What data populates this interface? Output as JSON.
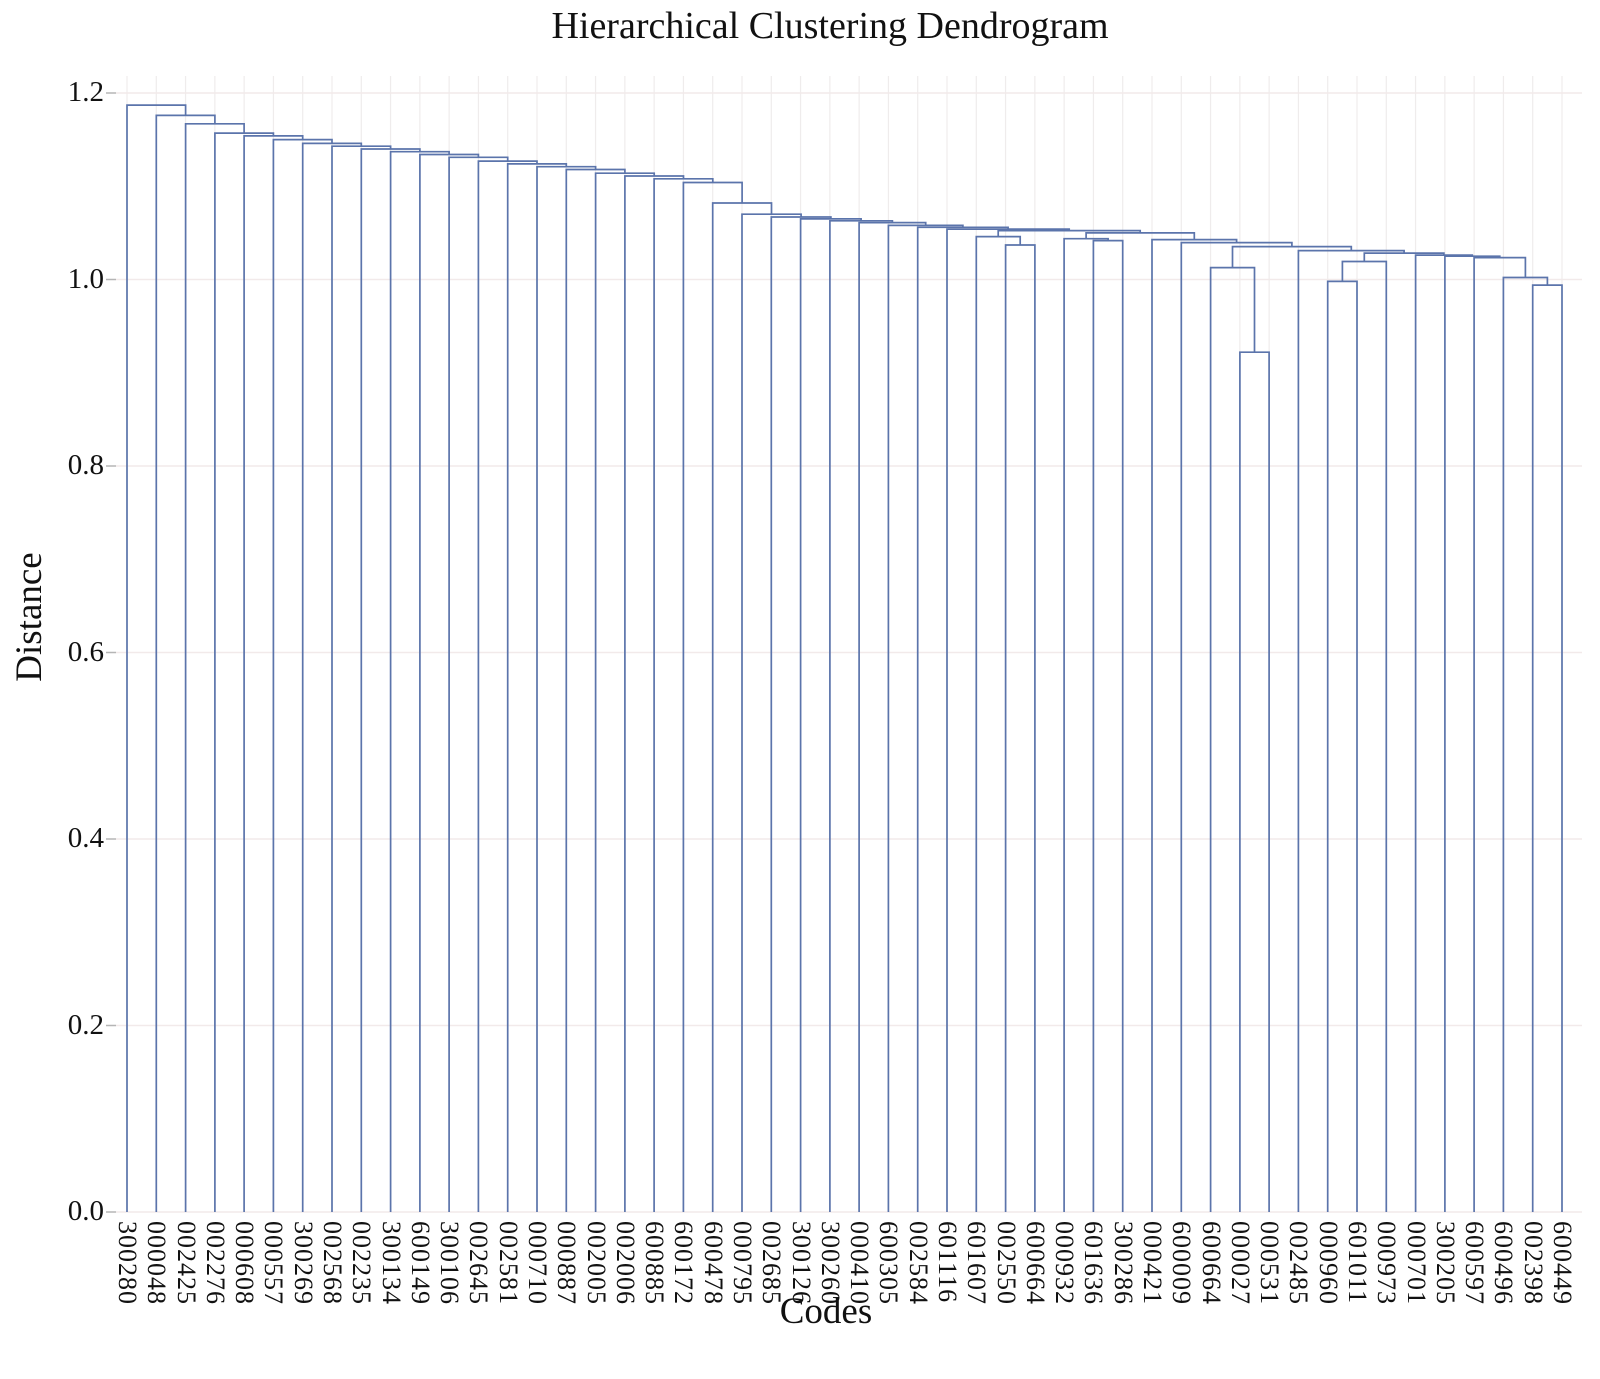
{
  "chart": {
    "title": "Hierarchical Clustering Dendrogram",
    "xlabel": "Codes",
    "ylabel": "Distance"
  },
  "chart_data": {
    "type": "dendrogram",
    "title": "Hierarchical Clustering Dendrogram",
    "xlabel": "Codes",
    "ylabel": "Distance",
    "ylim": [
      0.0,
      1.2
    ],
    "ytick_labels": [
      "0.0",
      "0.2",
      "0.4",
      "0.6",
      "0.8",
      "1.0",
      "1.2"
    ],
    "ytick_values": [
      0.0,
      0.2,
      0.4,
      0.6,
      0.8,
      1.0,
      1.2
    ],
    "grid": true,
    "leaves": [
      "300280",
      "000048",
      "002425",
      "002276",
      "000608",
      "000557",
      "300269",
      "002568",
      "002235",
      "300134",
      "600149",
      "300106",
      "002645",
      "002581",
      "000710",
      "000887",
      "002005",
      "002006",
      "600885",
      "600172",
      "600478",
      "000795",
      "002685",
      "300126",
      "300260",
      "000410",
      "600305",
      "002584",
      "601116",
      "601607",
      "002550",
      "600664",
      "000932",
      "601636",
      "300286",
      "000421",
      "600009",
      "600664",
      "000027",
      "000531",
      "002485",
      "000960",
      "601011",
      "000973",
      "000701",
      "300205",
      "600597",
      "600496",
      "002398",
      "600449"
    ],
    "merge_note": "Each merge is [childA, childB, distance]; ids 0-49 are leaves in x order, id 50+i is merge i of this list.",
    "merges": [
      [
        38,
        39,
        0.922
      ],
      [
        41,
        42,
        0.998
      ],
      [
        48,
        49,
        0.994
      ],
      [
        30,
        31,
        1.037
      ],
      [
        33,
        34,
        1.0417
      ],
      [
        29,
        53,
        1.046
      ],
      [
        32,
        54,
        1.0438
      ],
      [
        37,
        50,
        1.0128
      ],
      [
        51,
        43,
        1.0193
      ],
      [
        47,
        52,
        1.0021
      ],
      [
        46,
        59,
        1.0235
      ],
      [
        45,
        60,
        1.025
      ],
      [
        44,
        61,
        1.0262
      ],
      [
        58,
        62,
        1.0283
      ],
      [
        40,
        63,
        1.031
      ],
      [
        57,
        64,
        1.0353
      ],
      [
        36,
        65,
        1.0396
      ],
      [
        35,
        66,
        1.0428
      ],
      [
        56,
        67,
        1.05
      ],
      [
        55,
        68,
        1.0524
      ],
      [
        28,
        69,
        1.054
      ],
      [
        27,
        70,
        1.056
      ],
      [
        26,
        71,
        1.058
      ],
      [
        25,
        72,
        1.061
      ],
      [
        24,
        73,
        1.063
      ],
      [
        23,
        74,
        1.065
      ],
      [
        22,
        75,
        1.067
      ],
      [
        21,
        76,
        1.07
      ],
      [
        20,
        77,
        1.082
      ],
      [
        19,
        78,
        1.104
      ],
      [
        18,
        79,
        1.108
      ],
      [
        17,
        80,
        1.111
      ],
      [
        16,
        81,
        1.114
      ],
      [
        15,
        82,
        1.118
      ],
      [
        14,
        83,
        1.121
      ],
      [
        13,
        84,
        1.124
      ],
      [
        12,
        85,
        1.127
      ],
      [
        11,
        86,
        1.131
      ],
      [
        10,
        87,
        1.134
      ],
      [
        9,
        88,
        1.137
      ],
      [
        8,
        89,
        1.14
      ],
      [
        7,
        90,
        1.143
      ],
      [
        6,
        91,
        1.146
      ],
      [
        5,
        92,
        1.15
      ],
      [
        4,
        93,
        1.154
      ],
      [
        3,
        94,
        1.157
      ],
      [
        2,
        95,
        1.167
      ],
      [
        1,
        96,
        1.176
      ],
      [
        0,
        97,
        1.187
      ]
    ],
    "colors": {
      "line": "#5b74ab",
      "grid_vertical": "#efecec",
      "grid_horizontal": "#f2eaea",
      "tick_mark": "#b5b5b5",
      "text": "#111111"
    },
    "legend": null
  }
}
